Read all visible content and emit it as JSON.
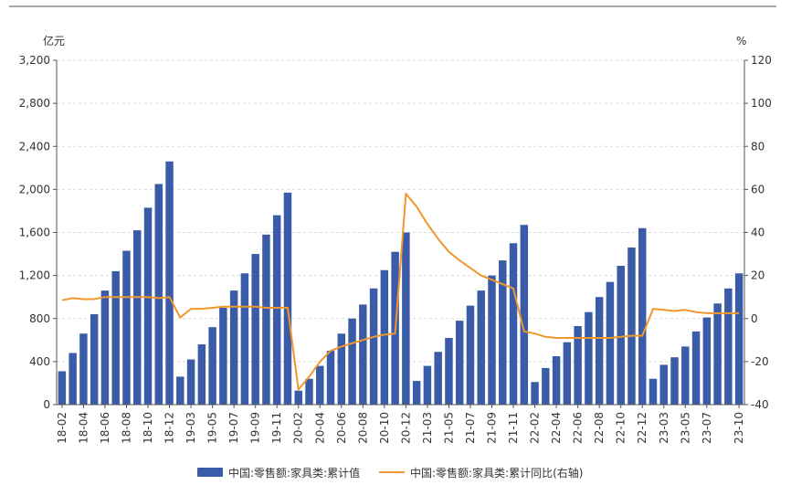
{
  "chart_data": {
    "type": "bar",
    "left_unit": "亿元",
    "right_unit": "%",
    "y_left_lim": [
      0,
      3200
    ],
    "y_left_ticks": [
      "0",
      "400",
      "800",
      "1,200",
      "1,600",
      "2,000",
      "2,400",
      "2,800",
      "3,200"
    ],
    "y_right_lim": [
      -40,
      120
    ],
    "y_right_ticks": [
      "-40",
      "-20",
      "0",
      "20",
      "40",
      "60",
      "80",
      "100",
      "120"
    ],
    "grid": true,
    "legend_position": "bottom",
    "categories": [
      "18-02",
      "18-03",
      "18-04",
      "18-05",
      "18-06",
      "18-07",
      "18-08",
      "18-09",
      "18-10",
      "18-11",
      "18-12",
      "19-02",
      "19-03",
      "19-04",
      "19-05",
      "19-06",
      "19-07",
      "19-08",
      "19-09",
      "19-10",
      "19-11",
      "19-12",
      "20-02",
      "20-03",
      "20-04",
      "20-05",
      "20-06",
      "20-07",
      "20-08",
      "20-09",
      "20-10",
      "20-11",
      "20-12",
      "21-02",
      "21-03",
      "21-04",
      "21-05",
      "21-06",
      "21-07",
      "21-08",
      "21-09",
      "21-10",
      "21-11",
      "21-12",
      "22-02",
      "22-03",
      "22-04",
      "22-05",
      "22-06",
      "22-07",
      "22-08",
      "22-09",
      "22-10",
      "22-11",
      "22-12",
      "23-02",
      "23-03",
      "23-04",
      "23-05",
      "23-06",
      "23-07",
      "23-08",
      "23-09",
      "23-10"
    ],
    "x_tick_labels": [
      "18-02",
      "18-04",
      "18-06",
      "18-08",
      "18-10",
      "18-12",
      "19-03",
      "19-05",
      "19-07",
      "19-09",
      "19-11",
      "20-02",
      "20-04",
      "20-06",
      "20-08",
      "20-10",
      "20-12",
      "21-03",
      "21-05",
      "21-07",
      "21-09",
      "21-11",
      "22-02",
      "22-04",
      "22-06",
      "22-08",
      "22-10",
      "22-12",
      "23-03",
      "23-05",
      "23-07",
      "23-10"
    ],
    "series": [
      {
        "name": "中国:零售额:家具类:累计值",
        "type": "bar",
        "axis": "left",
        "color": "#3a5ca8",
        "values": [
          310,
          480,
          660,
          840,
          1060,
          1240,
          1430,
          1620,
          1830,
          2050,
          2260,
          260,
          420,
          560,
          720,
          900,
          1060,
          1220,
          1400,
          1580,
          1760,
          1970,
          130,
          240,
          360,
          500,
          660,
          800,
          930,
          1080,
          1250,
          1420,
          1600,
          220,
          360,
          490,
          620,
          780,
          920,
          1060,
          1200,
          1340,
          1500,
          1670,
          210,
          340,
          450,
          580,
          730,
          860,
          1000,
          1140,
          1290,
          1460,
          1640,
          240,
          370,
          440,
          540,
          680,
          810,
          940,
          1080,
          1220
        ]
      },
      {
        "name": "中国:零售额:家具类:累计同比(右轴)",
        "type": "line",
        "axis": "right",
        "color": "#f0962c",
        "values": [
          8.5,
          9.5,
          9,
          9,
          10,
          10,
          10,
          10,
          10,
          9.5,
          10,
          0.5,
          4.5,
          4.5,
          5,
          5.5,
          5.5,
          5.5,
          5.5,
          5,
          5,
          5,
          -33,
          -27,
          -20,
          -15,
          -13,
          -11.5,
          -10,
          -8.5,
          -7.5,
          -7,
          58,
          52,
          44,
          37,
          31,
          27,
          23.5,
          20,
          18,
          16,
          14,
          -6,
          -7,
          -8.5,
          -9,
          -9,
          -9,
          -9,
          -9,
          -9,
          -8.5,
          -8,
          -8,
          4.5,
          4,
          3.5,
          4,
          3,
          2.5,
          2.5,
          2.5,
          2.5
        ]
      }
    ]
  }
}
